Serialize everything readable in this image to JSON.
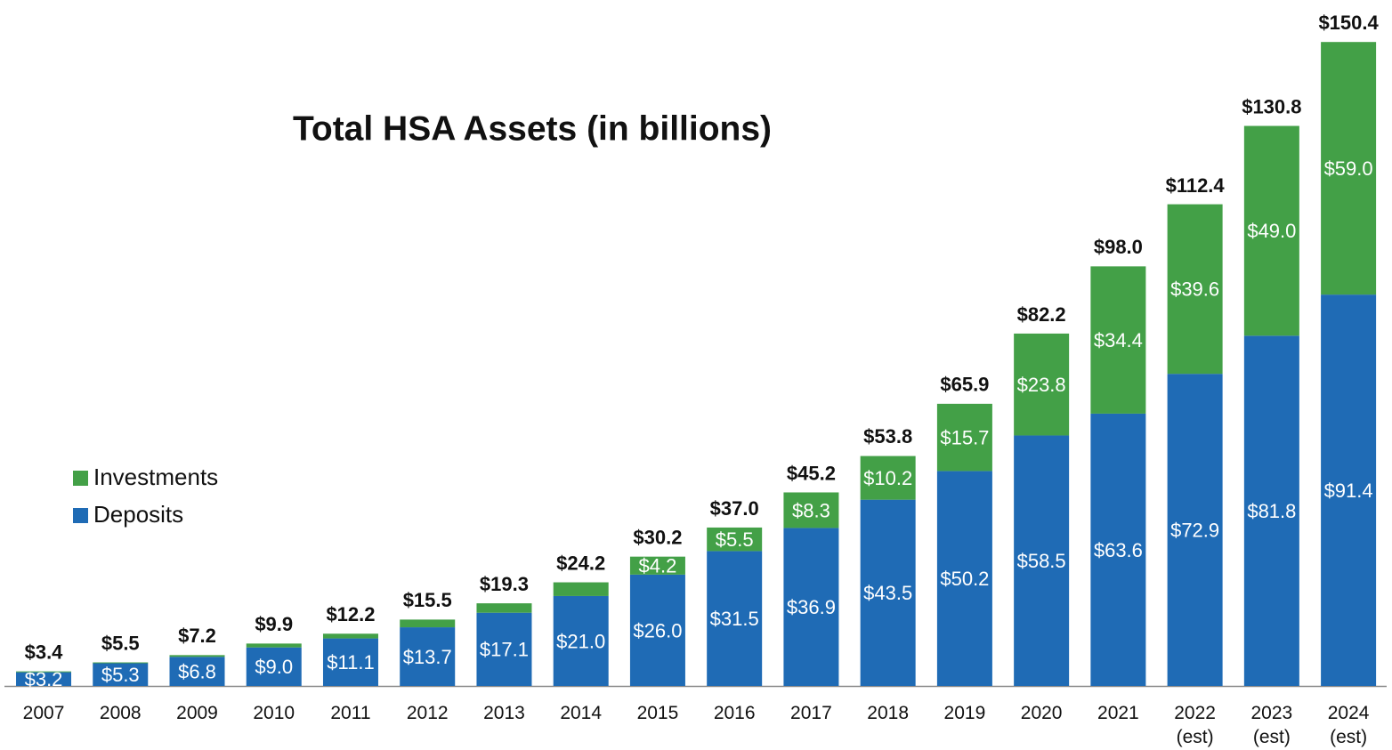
{
  "chart_data": {
    "type": "stacked_bar",
    "title": "Total HSA Assets (in billions)",
    "categories": [
      "2007",
      "2008",
      "2009",
      "2010",
      "2011",
      "2012",
      "2013",
      "2014",
      "2015",
      "2016",
      "2017",
      "2018",
      "2019",
      "2020",
      "2021",
      "2022 (est)",
      "2023 (est)",
      "2024 (est)"
    ],
    "series": [
      {
        "name": "Deposits",
        "color": "#1f6bb5",
        "values": [
          3.2,
          5.3,
          6.8,
          9.0,
          11.1,
          13.7,
          17.1,
          21.0,
          26.0,
          31.5,
          36.9,
          43.5,
          50.2,
          58.5,
          63.6,
          72.9,
          81.8,
          91.4
        ],
        "value_labels": [
          "$3.2",
          "$5.3",
          "$6.8",
          "$9.0",
          "$11.1",
          "$13.7",
          "$17.1",
          "$21.0",
          "$26.0",
          "$31.5",
          "$36.9",
          "$43.5",
          "$50.2",
          "$58.5",
          "$63.6",
          "$72.9",
          "$81.8",
          "$91.4"
        ]
      },
      {
        "name": "Investments",
        "color": "#43a047",
        "values": [
          0.2,
          0.2,
          0.4,
          0.9,
          1.1,
          1.8,
          2.2,
          3.2,
          4.2,
          5.5,
          8.3,
          10.2,
          15.7,
          23.8,
          34.4,
          39.6,
          49.0,
          59.0
        ],
        "value_labels": [
          null,
          null,
          null,
          null,
          null,
          null,
          null,
          null,
          "$4.2",
          "$5.5",
          "$8.3",
          "$10.2",
          "$15.7",
          "$23.8",
          "$34.4",
          "$39.6",
          "$49.0",
          "$59.0"
        ]
      }
    ],
    "totals": {
      "values": [
        3.4,
        5.5,
        7.2,
        9.9,
        12.2,
        15.5,
        19.3,
        24.2,
        30.2,
        37.0,
        45.2,
        53.8,
        65.9,
        82.2,
        98.0,
        112.4,
        130.8,
        150.4
      ],
      "value_labels": [
        "$3.4",
        "$5.5",
        "$7.2",
        "$9.9",
        "$12.2",
        "$15.5",
        "$19.3",
        "$24.2",
        "$30.2",
        "$37.0",
        "$45.2",
        "$53.8",
        "$65.9",
        "$82.2",
        "$98.0",
        "$112.4",
        "$130.8",
        "$150.4"
      ]
    },
    "ylim": [
      0,
      160
    ],
    "legend": "left"
  }
}
